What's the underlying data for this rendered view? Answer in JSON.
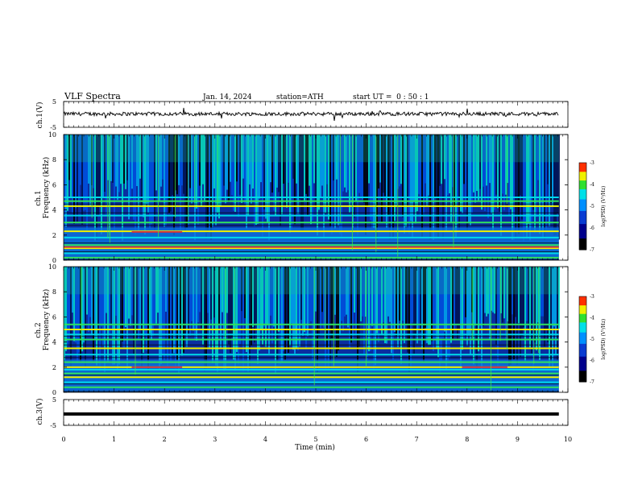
{
  "header": {
    "title": "VLF Spectra",
    "date": "Jan. 14, 2024",
    "station": "station=ATH",
    "start": "start UT =  0 : 50 : 1"
  },
  "chart_data": {
    "type": "heatmap",
    "x_axis": {
      "label": "Time (min)",
      "range": [
        0,
        10
      ],
      "ticks": [
        "0",
        "1",
        "2",
        "3",
        "4",
        "5",
        "6",
        "7",
        "8",
        "9",
        "10"
      ]
    },
    "panels": [
      {
        "id": "ch1",
        "type": "line",
        "ylabel": "ch.1(V)",
        "yrange": [
          -5,
          5
        ],
        "yticks": [
          "5",
          "-5"
        ],
        "baseline_v": 0.2,
        "data_end_min": 9.82
      },
      {
        "id": "ch1-spec",
        "type": "heatmap",
        "ylabel_top": "ch.1",
        "ylabel": "Frequency (kHz)",
        "yrange": [
          0,
          10
        ],
        "yticks": [
          "0",
          "2",
          "4",
          "6",
          "8",
          "10"
        ],
        "bands_khz": [
          0.2,
          0.55,
          0.95,
          1.2,
          1.8,
          2.3,
          3.0,
          3.55,
          4.3,
          4.7,
          5.0
        ],
        "hot_lines": [
          {
            "khz": 1.05,
            "color": "#cc3344"
          },
          {
            "khz": 2.25,
            "from_min": 1.35,
            "to_min": 2.35,
            "color": "#cc3344"
          }
        ],
        "colorbar": {
          "label": "log(PSD) (V²/Hz)",
          "range": [
            -7,
            -3
          ],
          "ticks": [
            "-3",
            "-4",
            "-5",
            "-6",
            "-7"
          ]
        }
      },
      {
        "id": "ch2-spec",
        "type": "heatmap",
        "ylabel_top": "ch.2",
        "ylabel": "Frequency (kHz)",
        "yrange": [
          0,
          10
        ],
        "yticks": [
          "0",
          "2",
          "4",
          "6",
          "8",
          "10"
        ],
        "bands_khz": [
          0.4,
          0.8,
          1.2,
          1.5,
          1.8,
          2.0,
          2.4,
          3.0,
          3.5,
          4.2,
          4.6,
          5.0,
          5.4
        ],
        "hot_lines": [
          {
            "khz": 2.0,
            "from_min": 1.35,
            "to_min": 2.35,
            "color": "#cc3344"
          },
          {
            "khz": 2.0,
            "from_min": 7.9,
            "to_min": 8.8,
            "color": "#cc3344"
          }
        ],
        "colorbar": {
          "label": "log(PSD) (V²/Hz)",
          "range": [
            -7,
            -3
          ],
          "ticks": [
            "-3",
            "-4",
            "-5",
            "-6",
            "-7"
          ]
        }
      },
      {
        "id": "ch3",
        "type": "line",
        "ylabel": "ch.3(V)",
        "yrange": [
          -5,
          5
        ],
        "yticks": [
          "5",
          "-5"
        ],
        "baseline_v": -0.6,
        "data_end_min": 9.82
      }
    ]
  }
}
